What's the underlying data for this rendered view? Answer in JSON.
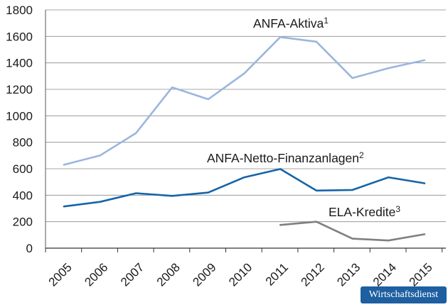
{
  "chart_data": {
    "type": "line",
    "categories": [
      "2005",
      "2006",
      "2007",
      "2008",
      "2009",
      "2010",
      "2011",
      "2012",
      "2013",
      "2014",
      "2015"
    ],
    "ylim": [
      0,
      1800
    ],
    "yticks": [
      "0",
      "200",
      "400",
      "600",
      "800",
      "1000",
      "1200",
      "1400",
      "1600",
      "1800"
    ],
    "grid": true,
    "series": [
      {
        "name": "ANFA-Aktiva",
        "footnote": "1",
        "color": "#9bb6de",
        "x": [
          2005,
          2006,
          2007,
          2008,
          2009,
          2010,
          2011,
          2012,
          2013,
          2014,
          2015
        ],
        "values": [
          630,
          700,
          870,
          1215,
          1125,
          1320,
          1595,
          1560,
          1285,
          1360,
          1420
        ]
      },
      {
        "name": "ANFA-Netto-Finanzanlagen",
        "footnote": "2",
        "color": "#1565a8",
        "x": [
          2005,
          2006,
          2007,
          2008,
          2009,
          2010,
          2011,
          2012,
          2013,
          2014,
          2015
        ],
        "values": [
          315,
          350,
          415,
          395,
          420,
          535,
          598,
          435,
          440,
          535,
          490
        ]
      },
      {
        "name": "ELA-Kredite",
        "footnote": "3",
        "color": "#7f7f7f",
        "x": [
          2011,
          2012,
          2013,
          2014,
          2015
        ],
        "values": [
          175,
          200,
          72,
          58,
          105
        ]
      }
    ]
  },
  "source_badge": "Wirtschaftsdienst"
}
